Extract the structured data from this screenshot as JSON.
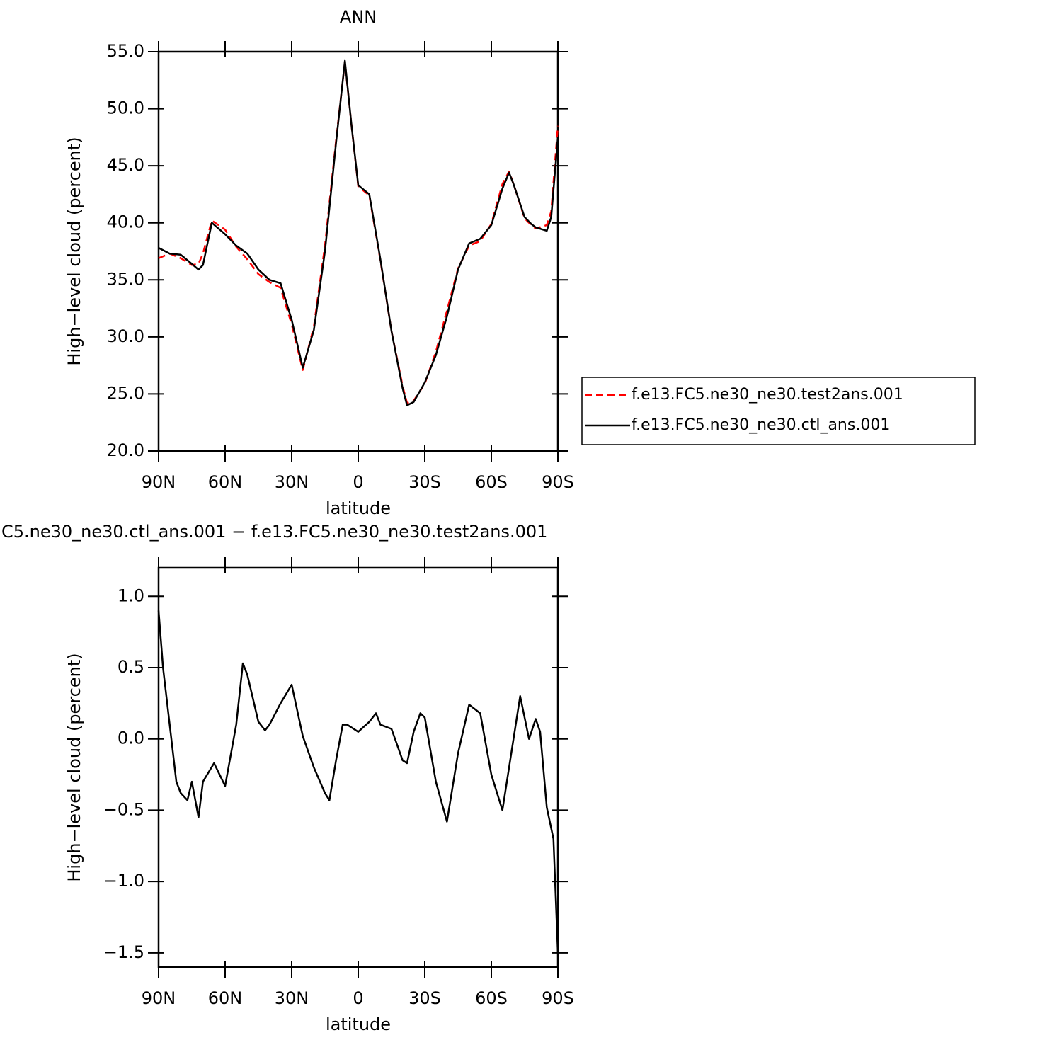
{
  "chart_data": [
    {
      "type": "line",
      "title": "ANN",
      "x_label": "latitude",
      "y_label": "High−level cloud (percent)",
      "x": [
        90,
        85,
        80,
        75,
        72,
        70,
        66,
        60,
        55,
        50,
        45,
        40,
        35,
        30,
        25,
        20,
        15,
        10,
        6,
        3,
        0,
        -5,
        -10,
        -15,
        -20,
        -22,
        -25,
        -30,
        -35,
        -40,
        -45,
        -50,
        -55,
        -60,
        -65,
        -68,
        -70,
        -75,
        -78,
        -80,
        -85,
        -87,
        -90
      ],
      "series": [
        {
          "name": "f.e13.FC5.ne30_ne30.test2ans.001",
          "color": "#ff0000",
          "line_style": "dashed",
          "values": [
            36.9,
            37.3,
            36.9,
            36.3,
            36.4,
            37.3,
            40.2,
            39.4,
            37.9,
            36.8,
            35.5,
            34.8,
            34.3,
            31.1,
            27.1,
            30.9,
            38.0,
            47.2,
            54.1,
            48.5,
            43.2,
            42.4,
            36.7,
            30.5,
            25.7,
            24.2,
            24.4,
            25.9,
            28.7,
            32.3,
            36.0,
            38.0,
            38.4,
            39.9,
            43.4,
            44.5,
            43.4,
            40.4,
            39.8,
            39.5,
            39.8,
            41.0,
            48.5
          ]
        },
        {
          "name": "f.e13.FC5.ne30_ne30.ctl_ans.001",
          "color": "#000000",
          "line_style": "solid",
          "values": [
            37.8,
            37.3,
            37.2,
            36.4,
            35.9,
            36.3,
            40.0,
            39.0,
            38.0,
            37.3,
            35.9,
            35.0,
            34.7,
            31.5,
            27.3,
            30.6,
            37.5,
            47.0,
            54.2,
            48.5,
            43.3,
            42.5,
            36.8,
            30.5,
            25.5,
            24.0,
            24.3,
            26.0,
            28.4,
            31.8,
            35.9,
            38.2,
            38.6,
            39.8,
            43.0,
            44.4,
            43.4,
            40.5,
            39.9,
            39.6,
            39.3,
            40.5,
            47.5
          ]
        }
      ],
      "xlim": [
        90,
        -90
      ],
      "xticks": [
        {
          "value": 90,
          "label": "90N"
        },
        {
          "value": 60,
          "label": "60N"
        },
        {
          "value": 30,
          "label": "30N"
        },
        0,
        {
          "value": -30,
          "label": "30S"
        },
        {
          "value": -60,
          "label": "60S"
        },
        {
          "value": -90,
          "label": "90S"
        }
      ],
      "ylim": [
        20,
        55
      ],
      "yticks": [
        {
          "value": 20,
          "label": "20.0"
        },
        {
          "value": 25,
          "label": "25.0"
        },
        {
          "value": 30,
          "label": "30.0"
        },
        {
          "value": 35,
          "label": "35.0"
        },
        {
          "value": 40,
          "label": "40.0"
        },
        {
          "value": 45,
          "label": "45.0"
        },
        {
          "value": 50,
          "label": "50.0"
        },
        {
          "value": 55,
          "label": "55.0"
        }
      ],
      "legend": "right"
    },
    {
      "type": "line",
      "title": "C5.ne30_ne30.ctl_ans.001 − f.e13.FC5.ne30_ne30.test2ans.001",
      "x_label": "latitude",
      "y_label": "High−level cloud (percent)",
      "x": [
        90,
        88,
        85,
        82,
        80,
        77,
        75,
        72,
        70,
        65,
        60,
        55,
        52,
        50,
        45,
        42,
        40,
        35,
        30,
        25,
        20,
        15,
        13,
        10,
        7,
        5,
        0,
        -5,
        -8,
        -10,
        -15,
        -20,
        -22,
        -25,
        -28,
        -30,
        -35,
        -40,
        -45,
        -50,
        -55,
        -60,
        -65,
        -70,
        -73,
        -75,
        -77,
        -80,
        -82,
        -85,
        -88,
        -90
      ],
      "series": [
        {
          "color": "#000000",
          "line_style": "solid",
          "values": [
            0.9,
            0.5,
            0.1,
            -0.3,
            -0.38,
            -0.43,
            -0.3,
            -0.55,
            -0.3,
            -0.17,
            -0.33,
            0.1,
            0.53,
            0.45,
            0.12,
            0.06,
            0.1,
            0.25,
            0.38,
            0.02,
            -0.2,
            -0.38,
            -0.43,
            -0.15,
            0.1,
            0.1,
            0.05,
            0.12,
            0.18,
            0.1,
            0.07,
            -0.15,
            -0.17,
            0.05,
            0.18,
            0.15,
            -0.3,
            -0.58,
            -0.1,
            0.24,
            0.18,
            -0.25,
            -0.5,
            0.0,
            0.3,
            0.15,
            0.0,
            0.14,
            0.05,
            -0.48,
            -0.7,
            -1.5
          ]
        }
      ],
      "xlim": [
        90,
        -90
      ],
      "xticks": [
        {
          "value": 90,
          "label": "90N"
        },
        {
          "value": 60,
          "label": "60N"
        },
        {
          "value": 30,
          "label": "30N"
        },
        0,
        {
          "value": -30,
          "label": "30S"
        },
        {
          "value": -60,
          "label": "60S"
        },
        {
          "value": -90,
          "label": "90S"
        }
      ],
      "ylim": [
        -1.6,
        1.2
      ],
      "yticks": [
        {
          "value": -1.5,
          "label": "−1.5"
        },
        {
          "value": -1,
          "label": "−1.0"
        },
        {
          "value": -0.5,
          "label": "−0.5"
        },
        {
          "value": 0,
          "label": "0.0"
        },
        0.5,
        {
          "value": 1,
          "label": "1.0"
        }
      ]
    }
  ]
}
